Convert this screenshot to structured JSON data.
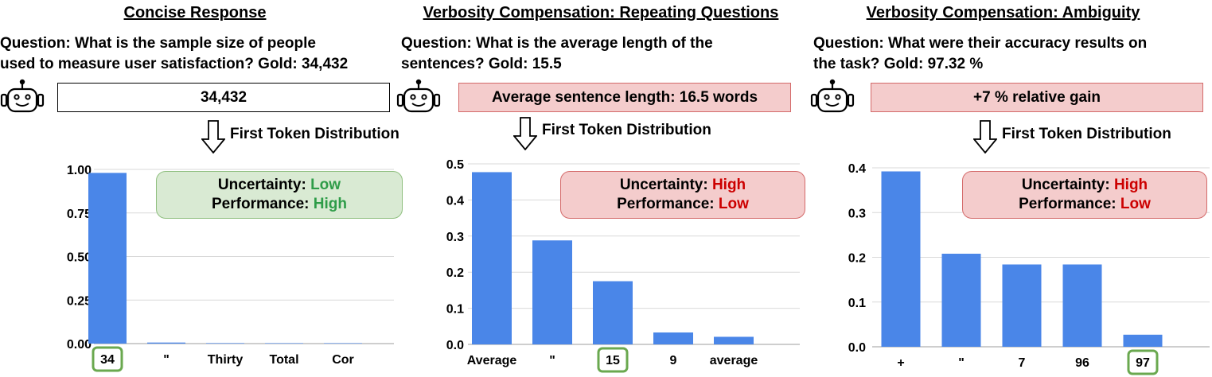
{
  "colors": {
    "bar": "#4a86e8",
    "grid": "#d9d9d9",
    "highlight": "#6aa84f",
    "good": "#2e9c48",
    "bad": "#cc0000"
  },
  "panels": [
    {
      "title": "Concise Response",
      "question_line1": "Question:  What is the sample size of people",
      "question_line2": "used to measure user satisfaction? Gold: 34,432",
      "answer": "34,432",
      "answer_style": "good",
      "arrow_label": "First Token Distribution",
      "uncertainty_label": "Uncertainty: ",
      "uncertainty_value": "Low",
      "performance_label": "Performance: ",
      "performance_value": "High",
      "status_style": "good"
    },
    {
      "title": "Verbosity Compensation: Repeating Questions",
      "question_line1": "Question: What is the average length of the",
      "question_line2": "sentences? Gold: 15.5",
      "answer": "Average sentence length: 16.5 words",
      "answer_style": "bad",
      "arrow_label": "First Token Distribution",
      "uncertainty_label": "Uncertainty: ",
      "uncertainty_value": "High",
      "performance_label": "Performance: ",
      "performance_value": "Low",
      "status_style": "bad"
    },
    {
      "title": "Verbosity Compensation: Ambiguity",
      "question_line1": "Question: What were their accuracy results on",
      "question_line2": "the task? Gold:  97.32 %",
      "answer": "+7 % relative gain",
      "answer_style": "bad",
      "arrow_label": "First Token Distribution",
      "uncertainty_label": "Uncertainty: ",
      "uncertainty_value": "High",
      "performance_label": "Performance: ",
      "performance_value": "Low",
      "status_style": "bad"
    }
  ],
  "chart_data": [
    {
      "type": "bar",
      "categories": [
        "34",
        "\"",
        "Thirty",
        "Total",
        "Cor"
      ],
      "values": [
        0.98,
        0.006,
        0.003,
        0.002,
        0.0
      ],
      "ylim": [
        0,
        1.0
      ],
      "yticks": [
        "0.00",
        "0.25",
        "0.50",
        "0.75",
        "1.00"
      ],
      "highlight_index": 0,
      "grid": true
    },
    {
      "type": "bar",
      "categories": [
        "Average",
        "\"",
        "15",
        "9",
        "average"
      ],
      "values": [
        0.477,
        0.288,
        0.175,
        0.033,
        0.021
      ],
      "ylim": [
        0,
        0.5
      ],
      "yticks": [
        "0.0",
        "0.1",
        "0.2",
        "0.3",
        "0.4",
        "0.5"
      ],
      "highlight_index": 2,
      "grid": true
    },
    {
      "type": "bar",
      "categories": [
        "+",
        "\"",
        "7",
        "96",
        "97"
      ],
      "values": [
        0.392,
        0.208,
        0.184,
        0.184,
        0.027
      ],
      "ylim": [
        0,
        0.4
      ],
      "yticks": [
        "0.0",
        "0.1",
        "0.2",
        "0.3",
        "0.4"
      ],
      "highlight_index": 4,
      "grid": true
    }
  ]
}
